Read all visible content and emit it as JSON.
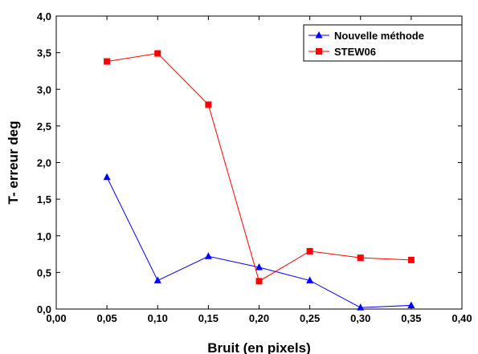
{
  "chart_data": {
    "type": "line",
    "xlabel": "Bruit (en pixels)",
    "ylabel": "T- erreur deg",
    "xlim": [
      0.0,
      0.4
    ],
    "ylim": [
      0.0,
      4.0
    ],
    "x_ticks": [
      "0,00",
      "0,05",
      "0,10",
      "0,15",
      "0,20",
      "0,25",
      "0,30",
      "0,35",
      "0,40"
    ],
    "y_ticks": [
      "0,0",
      "0,5",
      "1,0",
      "1,5",
      "2,0",
      "2,5",
      "3,0",
      "3,5",
      "4,0"
    ],
    "grid": false,
    "legend_position": "top-right",
    "x": [
      0.05,
      0.1,
      0.15,
      0.2,
      0.25,
      0.3,
      0.35
    ],
    "series": [
      {
        "name": "Nouvelle méthode",
        "color": "#0000ff",
        "marker": "triangle",
        "values": [
          1.8,
          0.39,
          0.72,
          0.57,
          0.39,
          0.02,
          0.05
        ]
      },
      {
        "name": "STEW06",
        "color": "#ff0000",
        "marker": "square",
        "values": [
          3.38,
          3.49,
          2.79,
          0.38,
          0.79,
          0.7,
          0.67
        ]
      }
    ]
  }
}
